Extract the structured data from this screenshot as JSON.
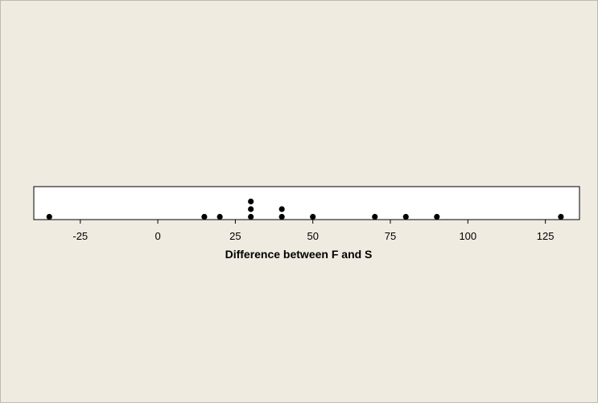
{
  "chart_data": {
    "type": "scatter",
    "subtype": "dotplot",
    "title": "",
    "xlabel": "Difference between F and S",
    "ylabel": "",
    "xlim": [
      -40,
      136
    ],
    "xticks": [
      -25,
      0,
      25,
      50,
      75,
      100,
      125
    ],
    "tick_labels": [
      "-25",
      "0",
      "25",
      "50",
      "75",
      "100",
      "125"
    ],
    "grid": false,
    "values": [
      -35,
      15,
      20,
      30,
      30,
      30,
      40,
      40,
      50,
      70,
      80,
      90,
      130
    ],
    "points": [
      {
        "x": -35,
        "stack": 1
      },
      {
        "x": 15,
        "stack": 1
      },
      {
        "x": 20,
        "stack": 1
      },
      {
        "x": 30,
        "stack": 1
      },
      {
        "x": 30,
        "stack": 2
      },
      {
        "x": 30,
        "stack": 3
      },
      {
        "x": 40,
        "stack": 1
      },
      {
        "x": 40,
        "stack": 2
      },
      {
        "x": 50,
        "stack": 1
      },
      {
        "x": 70,
        "stack": 1
      },
      {
        "x": 80,
        "stack": 1
      },
      {
        "x": 90,
        "stack": 1
      },
      {
        "x": 130,
        "stack": 1
      }
    ],
    "colors": {
      "background": "#efebe1",
      "plot_area": "#ffffff",
      "dot": "#000000",
      "axis": "#000000"
    }
  }
}
